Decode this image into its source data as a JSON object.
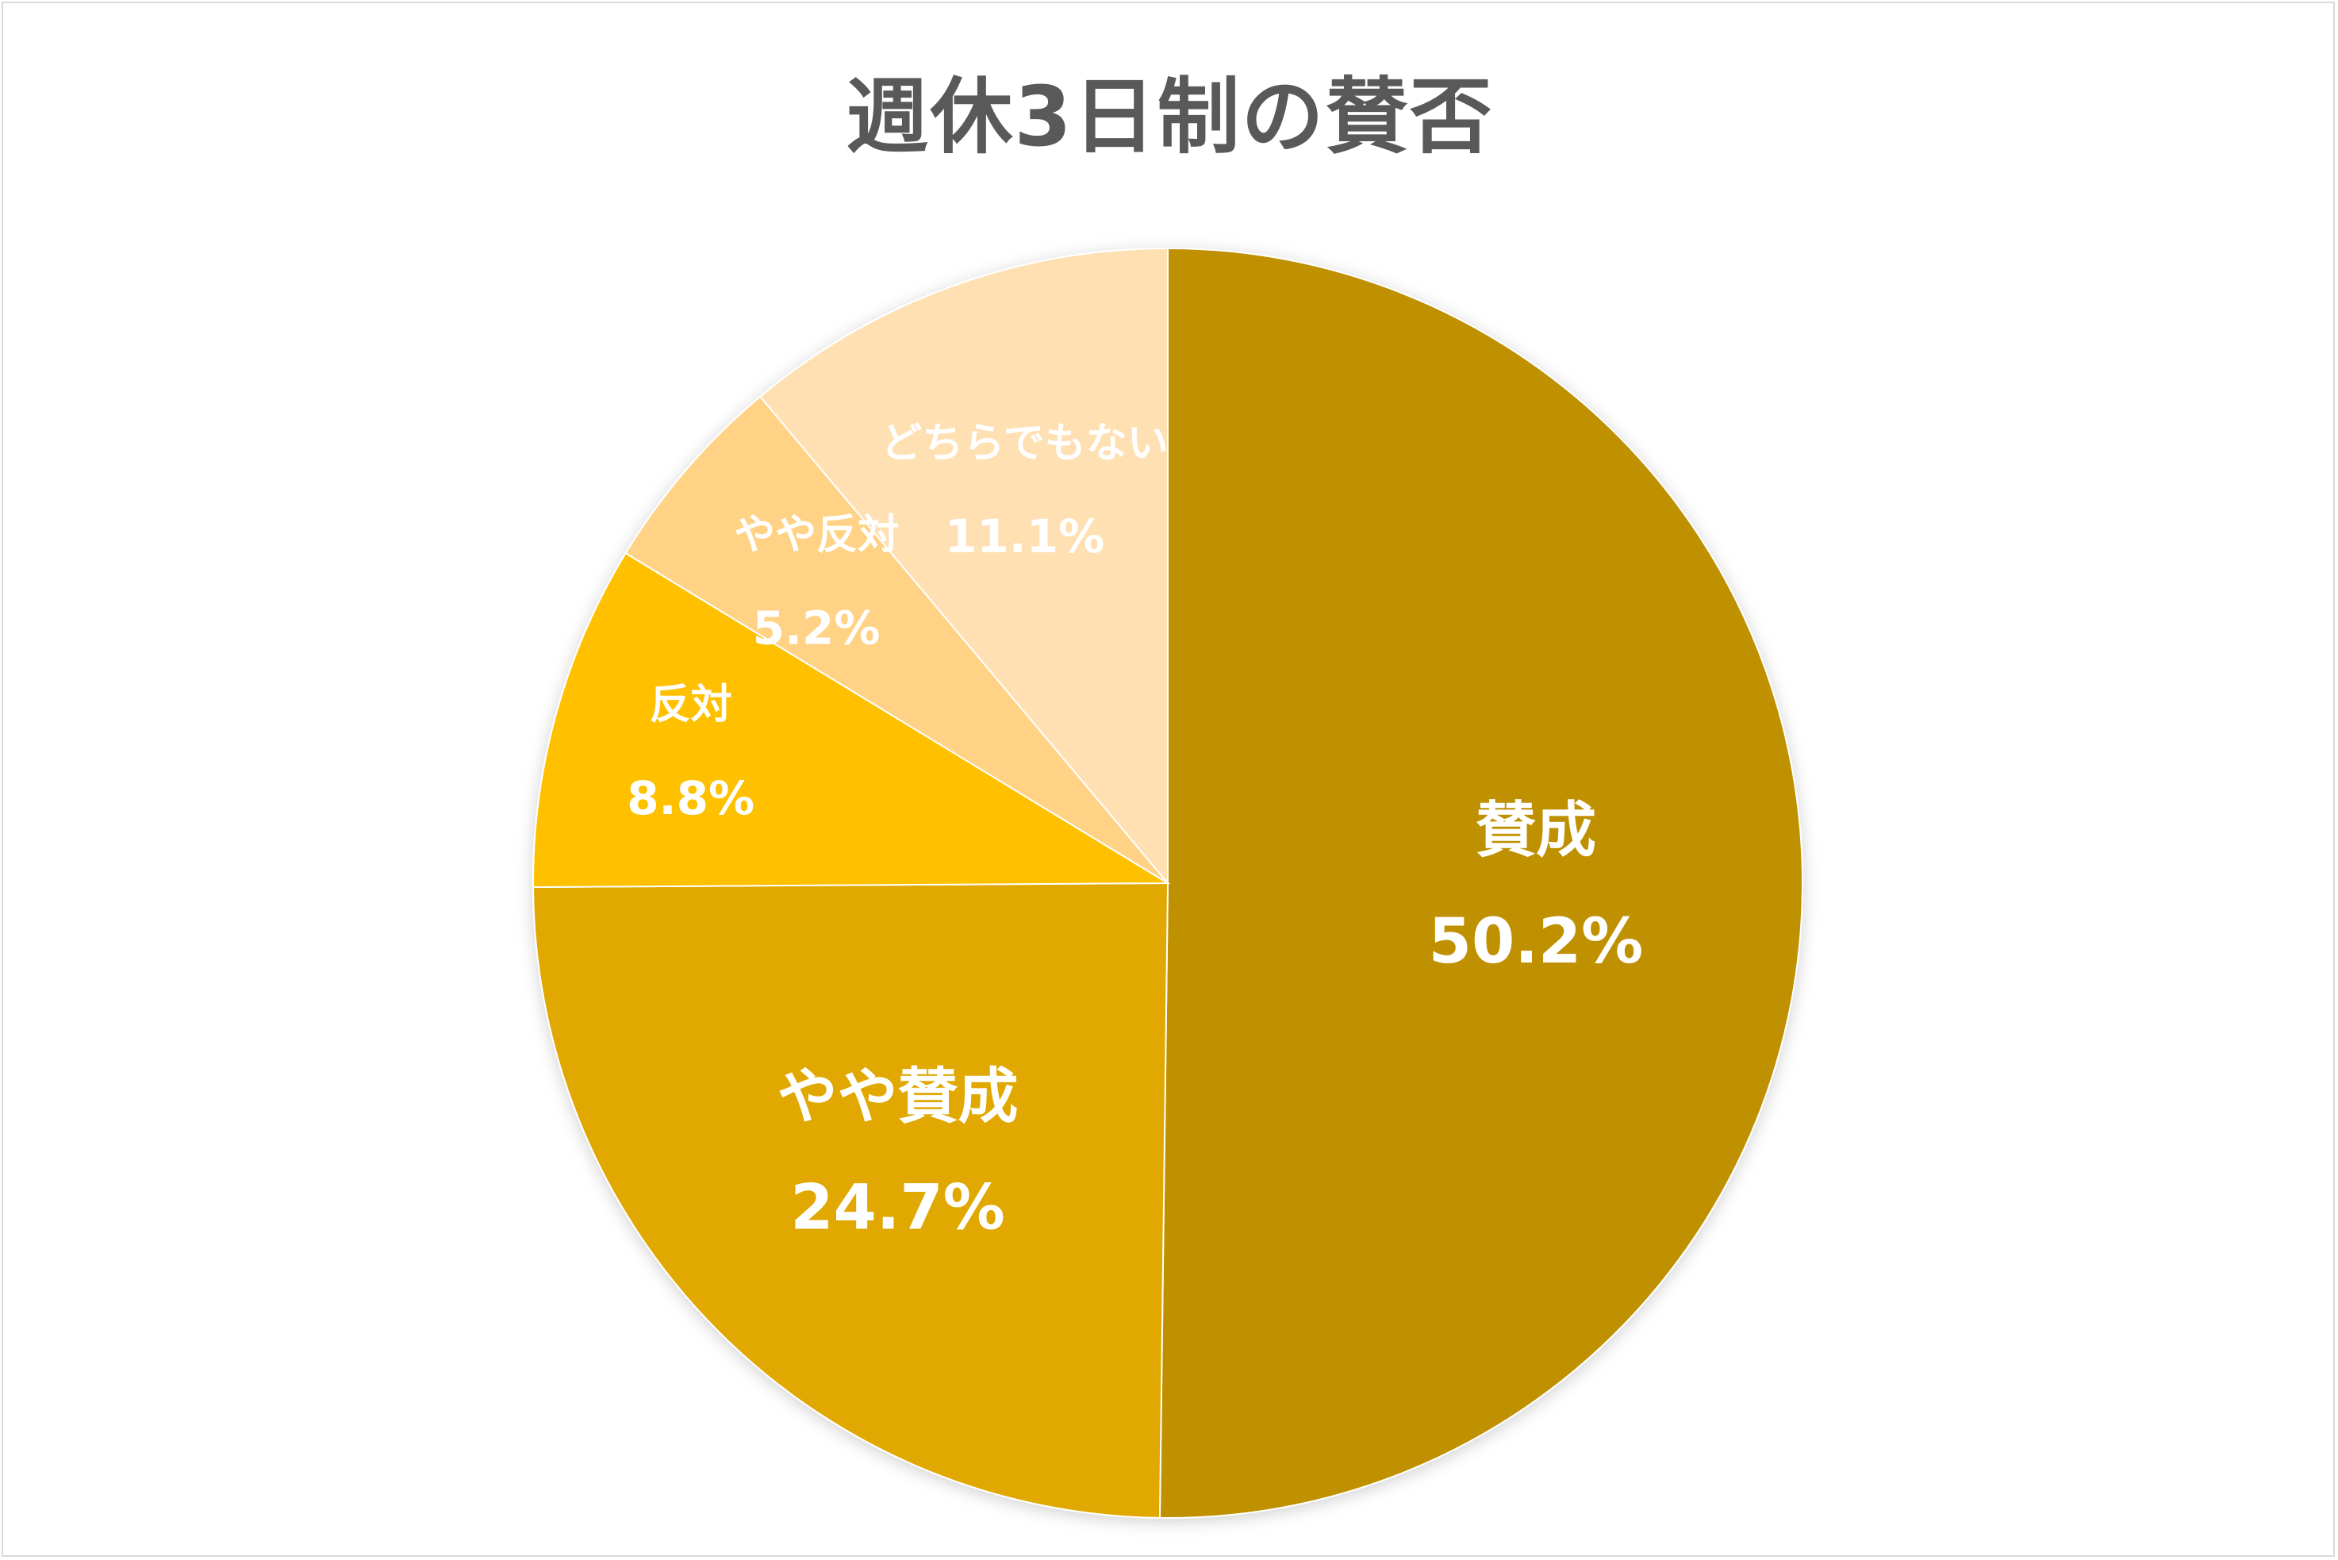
{
  "chart_data": {
    "type": "pie",
    "title": "週休3日制の賛否",
    "start_angle_deg": 0,
    "direction": "clockwise",
    "slices": [
      {
        "label": "賛成",
        "value": 50.2,
        "value_label": "50.2%",
        "color": "#bf9000",
        "label_size": "large"
      },
      {
        "label": "やや賛成",
        "value": 24.7,
        "value_label": "24.7%",
        "color": "#e0a800",
        "label_size": "large"
      },
      {
        "label": "反対",
        "value": 8.8,
        "value_label": "8.8%",
        "color": "#ffc000",
        "label_size": "small"
      },
      {
        "label": "やや反対",
        "value": 5.2,
        "value_label": "5.2%",
        "color": "#ffd285",
        "label_size": "small"
      },
      {
        "label": "どちらでもない",
        "value": 11.1,
        "value_label": "11.1%",
        "color": "#ffe0b3",
        "label_size": "small"
      }
    ]
  }
}
